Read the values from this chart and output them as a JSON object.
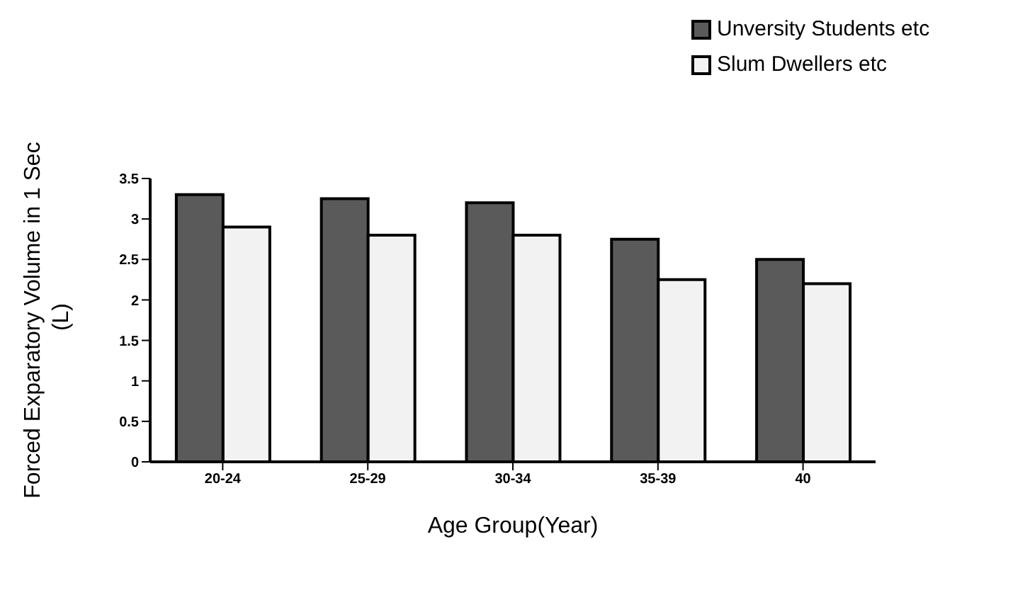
{
  "chart_data": {
    "type": "bar",
    "xlabel": "Age Group(Year)",
    "ylabel": "Forced Exparatory Volume in 1 Sec  (L)",
    "categories": [
      "20-24",
      "25-29",
      "30-34",
      "35-39",
      "40"
    ],
    "series": [
      {
        "name": "Unversity Students etc",
        "color": "#5a5a5a",
        "values": [
          3.3,
          3.25,
          3.2,
          2.75,
          2.5
        ]
      },
      {
        "name": "Slum Dwellers etc",
        "color": "#f2f2f2",
        "values": [
          2.9,
          2.8,
          2.8,
          2.25,
          2.2
        ]
      }
    ],
    "ylim": [
      0,
      3.5
    ],
    "yticks": [
      0,
      0.5,
      1,
      1.5,
      2,
      2.5,
      3,
      3.5
    ],
    "grid": false,
    "legend": "top right"
  }
}
